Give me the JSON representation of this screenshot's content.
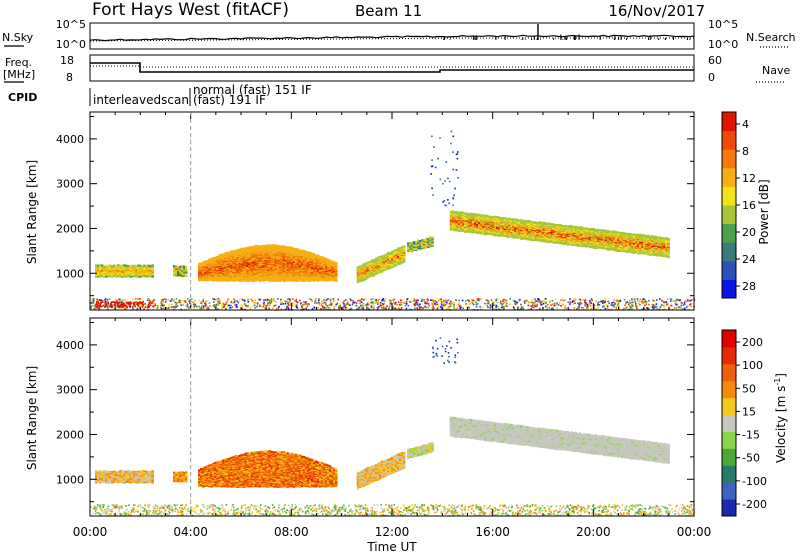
{
  "header": {
    "station": "Fort Hays West (fitACF)",
    "beam": "Beam 11",
    "date": "16/Nov/2017"
  },
  "chart_data": [
    {
      "type": "line",
      "panel": "noise",
      "left_label": "N.Sky",
      "right_label": "N.Search",
      "left_ticks": [
        "10^5",
        "10^0"
      ],
      "right_ticks": [
        "10^5",
        "10^0"
      ],
      "series": [
        {
          "name": "N.Sky",
          "style": "solid"
        },
        {
          "name": "N.Search",
          "style": "dotted"
        }
      ]
    },
    {
      "type": "line",
      "panel": "frequency",
      "left_label_lines": [
        "Freq.",
        "[MHz]"
      ],
      "right_label": "Nave",
      "left_ticks": [
        "18",
        "8"
      ],
      "right_ticks": [
        "60",
        "0"
      ],
      "series": [
        {
          "name": "Freq.",
          "style": "solid"
        },
        {
          "name": "Nave",
          "style": "dotted"
        }
      ]
    },
    {
      "type": "table",
      "panel": "cpid",
      "label": "CPID",
      "entries": [
        {
          "text": "interleavedscan"
        },
        {
          "text": "normal (fast) 151 IF"
        },
        {
          "text": "(fast) 191 IF"
        }
      ]
    },
    {
      "type": "heatmap",
      "panel": "power",
      "ylabel": "Slant Range [km]",
      "yticks": [
        "1000",
        "2000",
        "3000",
        "4000"
      ],
      "ylim": [
        180,
        4600
      ],
      "xlim": [
        0,
        24
      ],
      "colorbar": {
        "label": "Power [dB]",
        "ticks": [
          "4",
          "8",
          "12",
          "16",
          "20",
          "24",
          "28"
        ],
        "colors": [
          "#0a14e6",
          "#2a52b8",
          "#3a7a78",
          "#4aa050",
          "#a9c53a",
          "#f2e21a",
          "#f5b014",
          "#f57a0a",
          "#ee4a05",
          "#e01400"
        ]
      },
      "dashed_line_x": 4
    },
    {
      "type": "heatmap",
      "panel": "velocity",
      "ylabel": "Slant Range [km]",
      "yticks": [
        "1000",
        "2000",
        "3000",
        "4000"
      ],
      "ylim": [
        180,
        4600
      ],
      "xlim": [
        0,
        24
      ],
      "xlabel": "Time UT",
      "xticks": [
        "00:00",
        "04:00",
        "08:00",
        "12:00",
        "16:00",
        "20:00",
        "00:00"
      ],
      "colorbar": {
        "label_main": "Velocity [m s",
        "label_sup": "-1",
        "label_end": "]",
        "ticks": [
          "200",
          "100",
          "50",
          "15",
          "-15",
          "-50",
          "-100",
          "-200"
        ],
        "colors": [
          "#1a2ab0",
          "#3c63c0",
          "#2a7a6a",
          "#4aa83a",
          "#8ad64a",
          "#c8c8c0",
          "#f5c81a",
          "#f58a0a",
          "#f0600a",
          "#e62a05",
          "#e00000"
        ]
      },
      "dashed_line_x": 4
    }
  ]
}
